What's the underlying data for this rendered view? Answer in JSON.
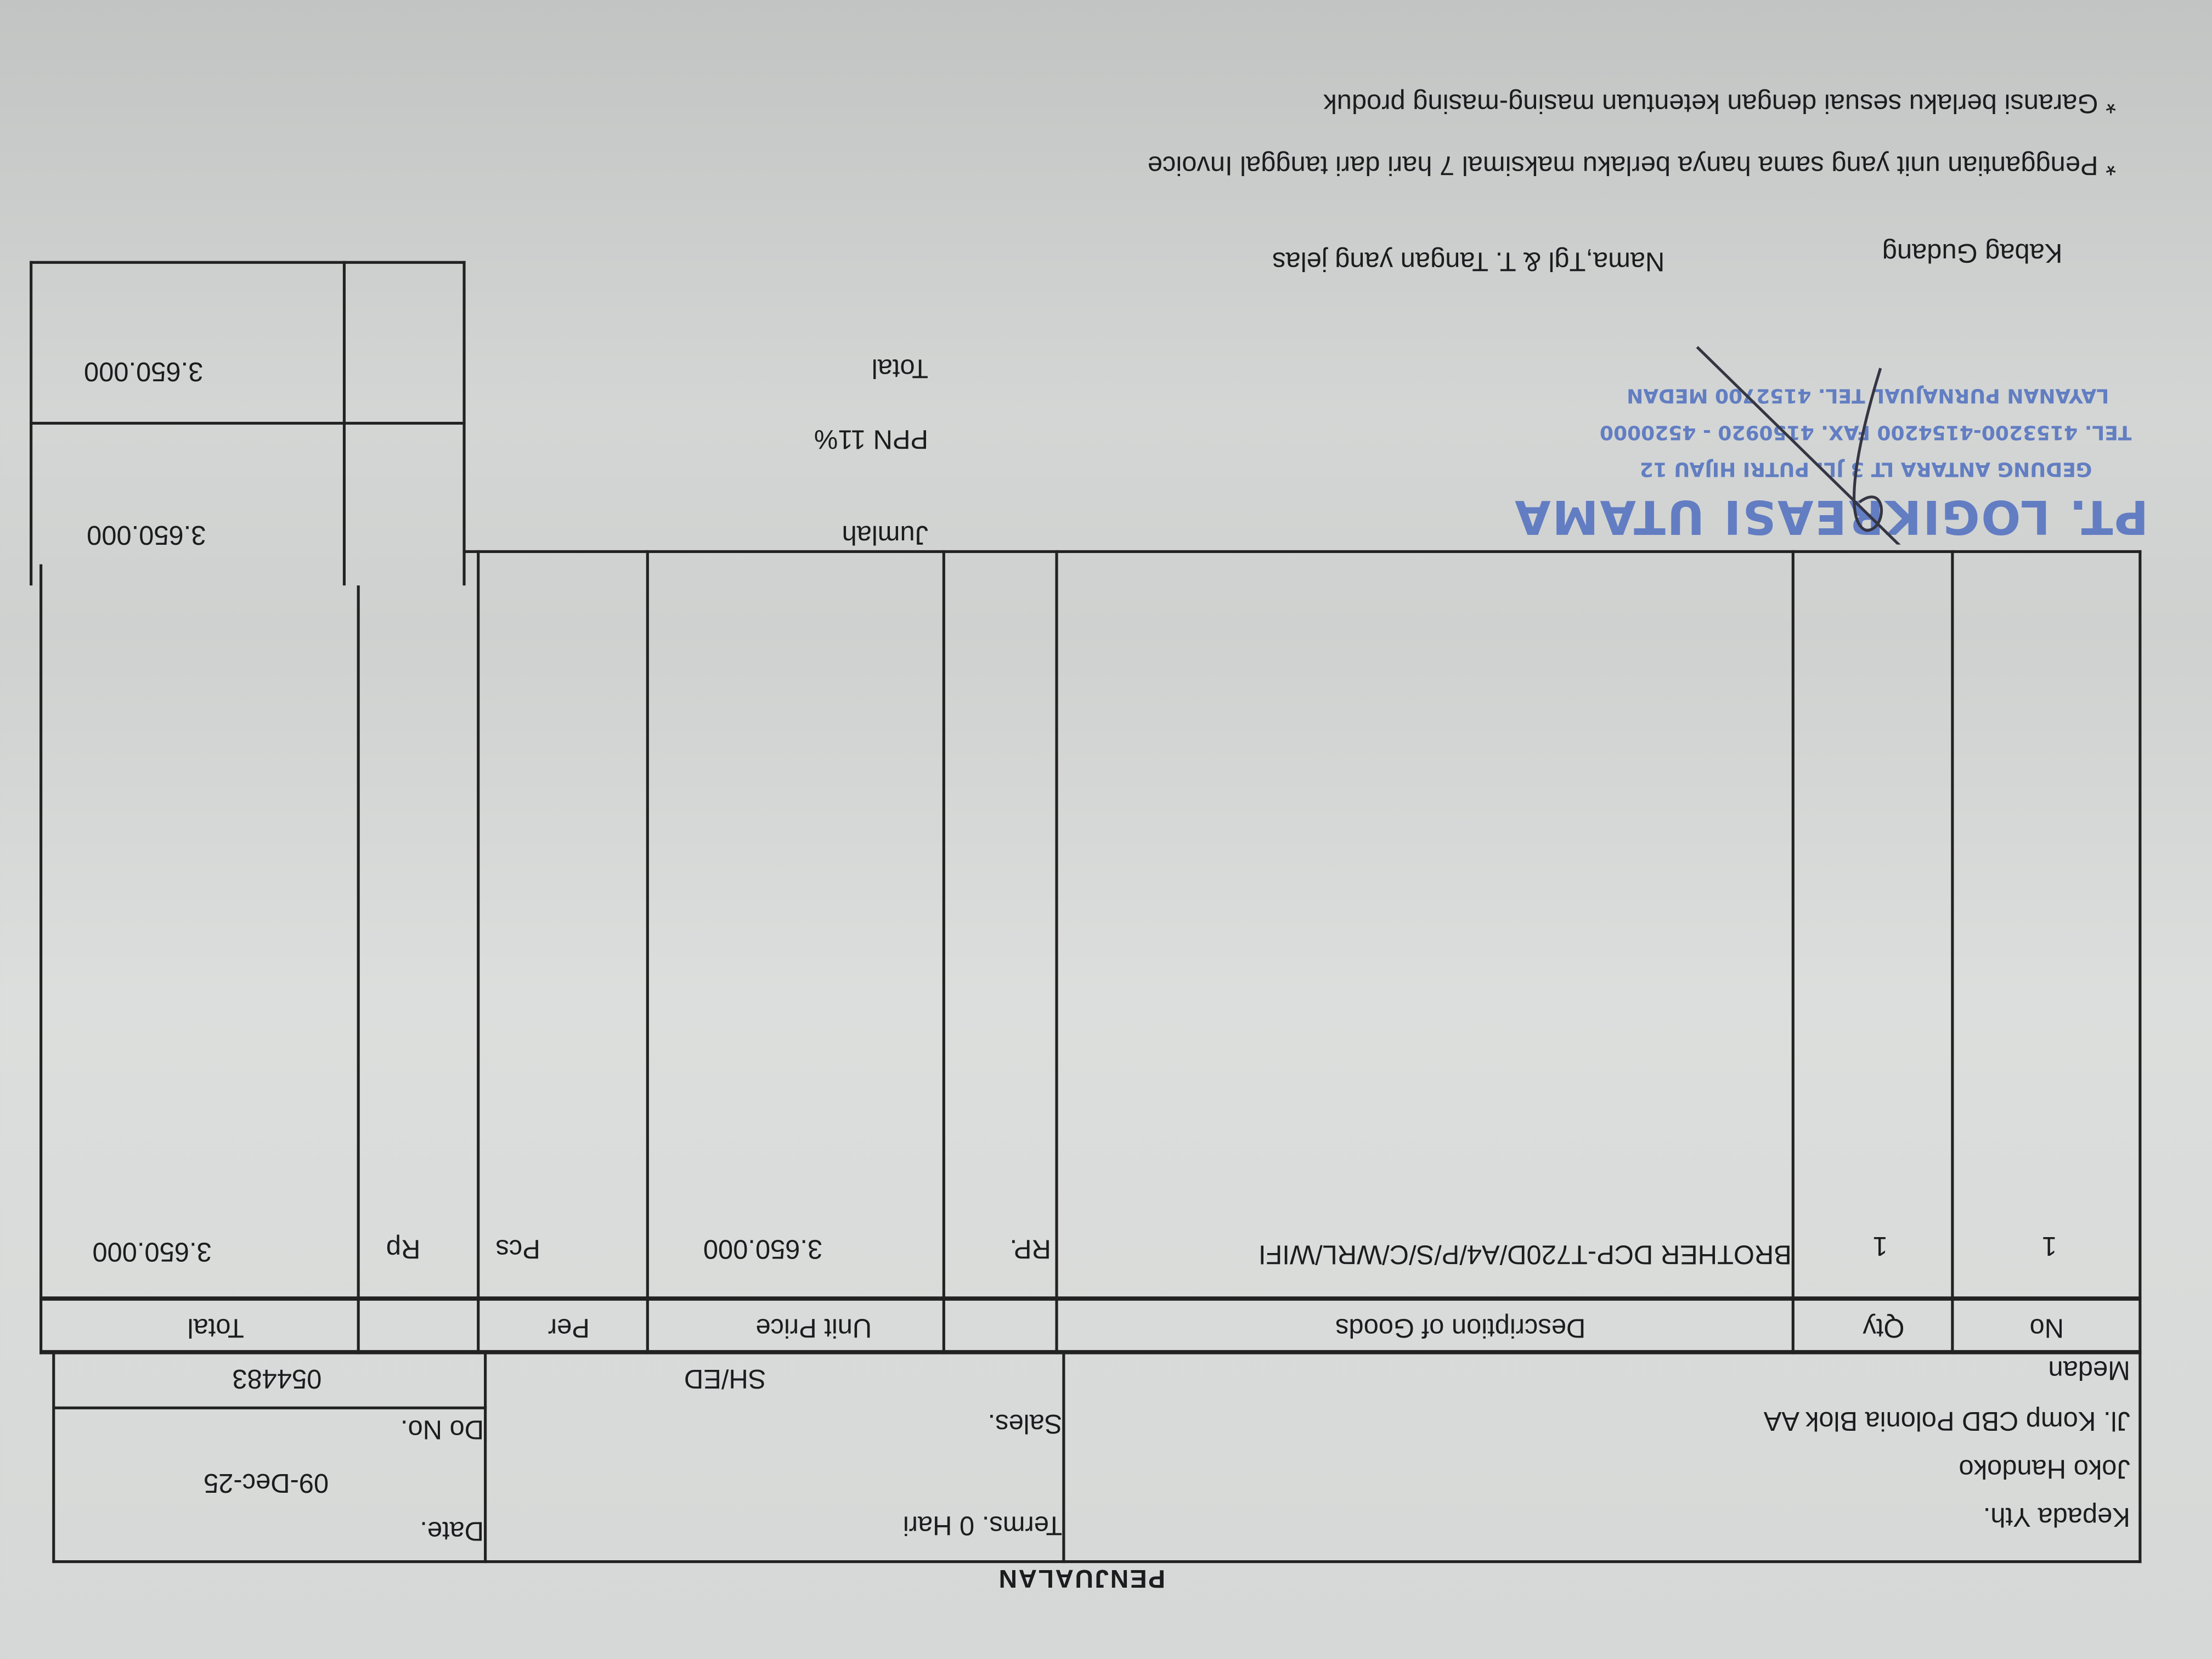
{
  "document": {
    "title": "PENJUALAN",
    "customer": {
      "label": "Kepada Yth.",
      "name": "Joko Handoko",
      "address": "Jl. Komp CBD Polonia Blok AA",
      "city": "Medan"
    },
    "terms": "Terms. 0 Hari",
    "sales_label": "Sales.",
    "shed_label": "SH/ED",
    "date_label": "Date.",
    "date_value": "09-Dec-25",
    "do_label": "Do No.",
    "do_value": "054483",
    "table": {
      "headers": [
        "No",
        "Qty",
        "Description of Goods",
        "",
        "Unit Price",
        "Per",
        "",
        "Total"
      ],
      "rows": [
        [
          "1",
          "1",
          "BROTHER DCP-T720D/A4/P/S/C/WRL/WIFI",
          "RP.",
          "3.650.000",
          "Pcs",
          "Rp",
          "3.650.000"
        ]
      ]
    },
    "totals": {
      "jumlah_label": "Jumlah",
      "jumlah_value": "3.650.000",
      "ppn_label": "PPN 11%",
      "ppn_value": "",
      "total_label": "Total",
      "total_value": "3.650.000"
    },
    "stamp": {
      "company": "PT. LOGIKREASI UTAMA",
      "line1": "GEDUNG ANTARA LT 3 JL. PUTRI HIJAU 12",
      "line2": "TEL. 4153200-4154200 FAX. 4150920 - 4520000",
      "line3": "LAYANAN PURNAJUAL TEL. 4152700 MEDAN",
      "color": "#4f6fc0"
    },
    "signatures": {
      "warehouse": "Kabag Gudang",
      "receiver": "Nama,Tgl & T. Tangan yang jelas"
    },
    "notes": [
      "* Penggantian unit yang sama hanya berlaku maksimal 7 hari dari tanggal Invoice",
      "* Garansi berlaku sesuai dengan ketentuan masing-masing produk"
    ]
  }
}
